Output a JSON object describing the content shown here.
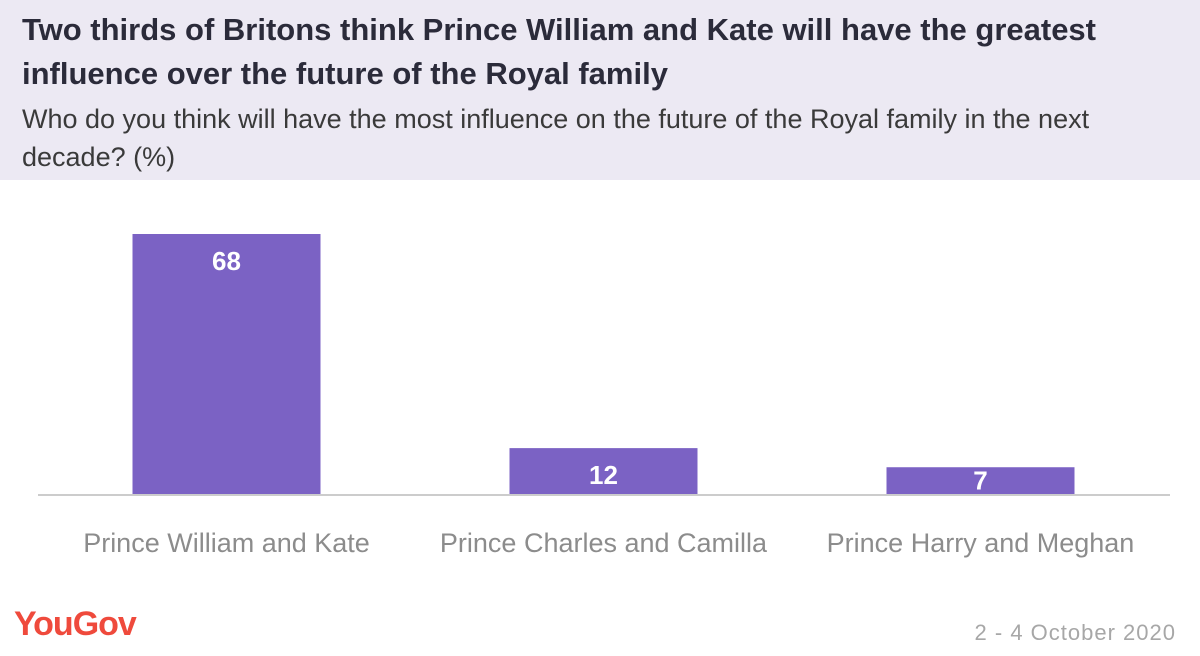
{
  "header": {
    "title": "Two thirds of Britons think Prince William and Kate will have the greatest influence over the future of the Royal family",
    "subtitle": "Who do you think will have the most influence on the future of the Royal family in the next decade? (%)"
  },
  "footer": {
    "logo_text": "YouGov",
    "date": "2 - 4 October 2020"
  },
  "colors": {
    "bar": "#7b62c4",
    "header_bg": "#ece9f3",
    "logo": "#ef4a3c",
    "label_inside": "#ffffff",
    "label_outside": "#7b62c4",
    "category_text": "#8c8c8c",
    "axis": "#cccccc"
  },
  "chart_data": {
    "type": "bar",
    "categories": [
      "Prince William and Kate",
      "Prince Charles and Camilla",
      "Prince Harry and Meghan"
    ],
    "values": [
      68,
      12,
      7
    ],
    "title": "Two thirds of Britons think Prince William and Kate will have the greatest influence over the future of the Royal family",
    "subtitle": "Who do you think will have the most influence on the future of the Royal family in the next decade? (%)",
    "xlabel": "",
    "ylabel": "",
    "ylim": [
      0,
      68
    ],
    "grid": false,
    "legend": "none",
    "data_labels": true
  }
}
